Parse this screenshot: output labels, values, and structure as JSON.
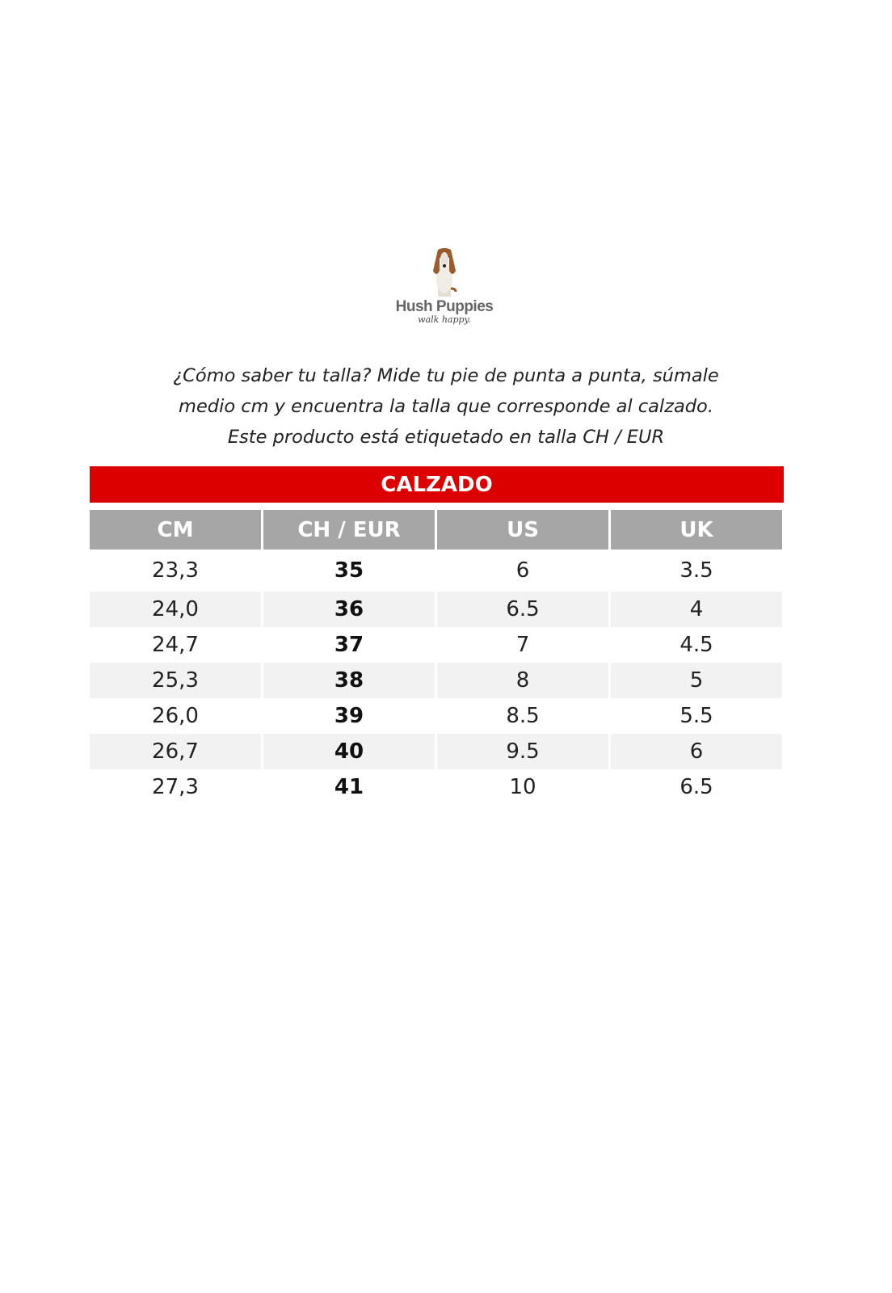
{
  "logo": {
    "brand": "Hush Puppies",
    "tagline": "walk happy."
  },
  "intro": [
    "¿Cómo saber tu talla? Mide tu pie de punta a punta, súmale",
    "medio cm y encuentra la talla que corresponde al calzado.",
    "Este producto está etiquetado en talla CH / EUR"
  ],
  "table": {
    "title": "CALZADO",
    "title_color": "#dd0000",
    "headers": [
      "CM",
      "CH / EUR",
      "US",
      "UK"
    ],
    "rows": [
      [
        "23,3",
        "35",
        "6",
        "3.5"
      ],
      [
        "24,0",
        "36",
        "6.5",
        "4"
      ],
      [
        "24,7",
        "37",
        "7",
        "4.5"
      ],
      [
        "25,3",
        "38",
        "8",
        "5"
      ],
      [
        "26,0",
        "39",
        "8.5",
        "5.5"
      ],
      [
        "26,7",
        "40",
        "9.5",
        "6"
      ],
      [
        "27,3",
        "41",
        "10",
        "6.5"
      ]
    ]
  }
}
